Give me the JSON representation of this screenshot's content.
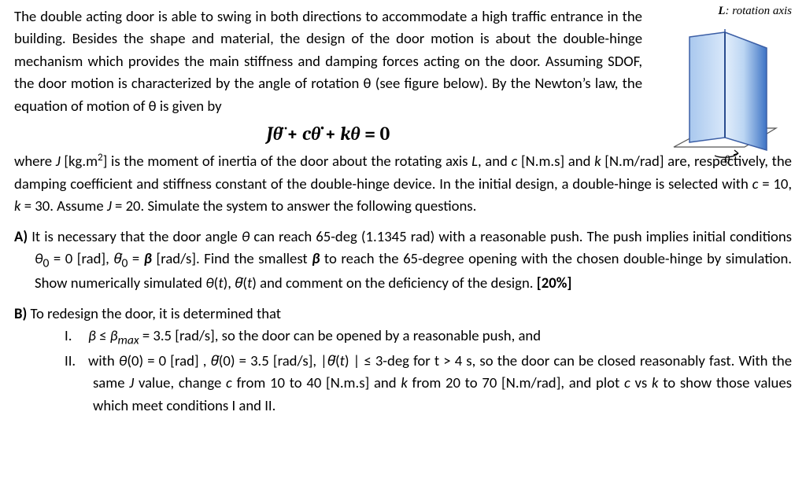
{
  "intro": "The double acting door is able to swing in both directions to accommodate a high traffic entrance in the building. Besides the shape and material, the design of the door motion is about the double-hinge mechanism which provides the main stiffness and damping forces acting on the door. Assuming SDOF, the door motion is characterized by the angle of rotation θ (see figure below). By the Newton’s law, the equation of motion of θ is given by",
  "equation_html": "<span>Jθ̈ <span class='rm'>+</span> cθ̇ <span class='rm'>+</span> kθ <span class='rm'>= 0</span></span>",
  "where_html": "where <i>J</i> [kg.m<sup>2</sup>] is the moment of inertia of the door about the rotating axis <i>L</i>, and <i>c</i> [N.m.s] and <i>k</i> [N.m/rad] are, respectively, the damping coefficient and stiffness constant of the double-hinge device. In the initial design, a double-hinge is selected with <i>c</i> = 10, <i>k</i> = 30. Assume <i>J</i> = 20. Simulate the system to answer the following questions.",
  "partA_html": "<b>A)</b> It is necessary that the door angle <i>θ</i> can reach 65-deg (1.1345 rad) with a reasonable push. The push implies initial conditions <i>θ</i><sub>0</sub> = 0 [rad], <i>θ̇</i><sub>0</sub> = <b><i>β</i></b> [rad/s]. Find the smallest <b><i>β</i></b> to reach the 65-degree opening with the chosen double-hinge by simulation. Show numerically simulated <i>θ</i>(<i>t</i>), <i>θ̇</i>(<i>t</i>) and comment on the deficiency of the design. <b>[20%]</b>",
  "partB_head_html": "<b>B)</b> To redesign the door, it is determined that",
  "partB_items": [
    {
      "label": "I.",
      "html": "<i>β</i> ≤ <i>β<sub>max</sub></i> = 3.5 [rad/s], so the door can be opened by a reasonable push, and"
    },
    {
      "label": "II.",
      "html": "with <i>θ</i>(0) = 0 [rad] , <i>θ̇</i>(0) = 3.5 [rad/s], |<i>θ̇</i>(<i>t</i>) | ≤ 3-deg for t > 4 s, so the door can be closed reasonably fast. With the same <i>J</i> value, change <i>c</i> from 10 to 40 [N.m.s] and <i>k</i> from 20 to 70 [N.m/rad], and plot <i>c</i> vs <i>k</i> to show those values which meet conditions I and II."
    }
  ],
  "figure": {
    "caption_html": "<span class='b'>L</span>: rotation axis",
    "theta_label": "θ",
    "colors": {
      "panel_light": "#cfe2f8",
      "panel_dark": "#3d73c5",
      "edge": "#3b5ea5",
      "floor": "#555555",
      "arc": "#000000"
    }
  }
}
